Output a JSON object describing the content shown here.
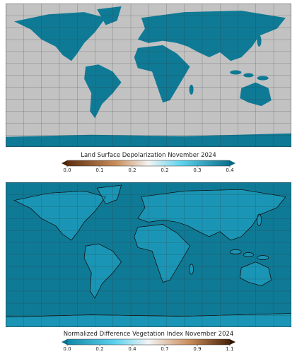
{
  "maps": [
    {
      "colorbar": {
        "title": "Land Surface Depolarization November 2024",
        "tick_labels": [
          "0.0",
          "0.1",
          "0.2",
          "0.2",
          "0.3",
          "0.4"
        ]
      }
    },
    {
      "colorbar": {
        "title": "Normalized Difference Vegetation Index November 2024",
        "tick_labels": [
          "0.0",
          "0.2",
          "0.4",
          "0.7",
          "0.9",
          "1.1"
        ]
      }
    }
  ]
}
